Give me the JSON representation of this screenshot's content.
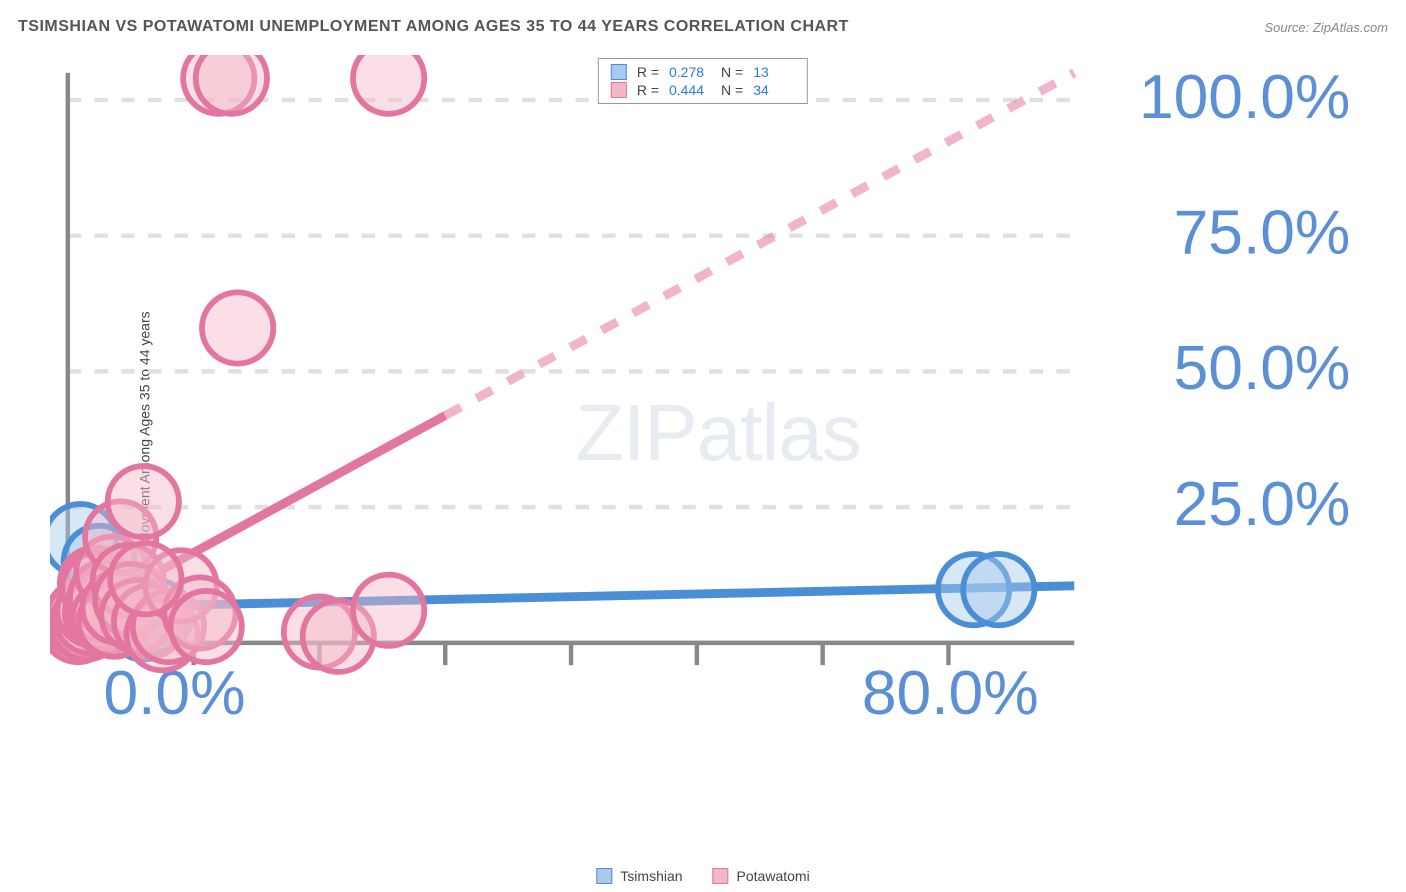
{
  "title": "TSIMSHIAN VS POTAWATOMI UNEMPLOYMENT AMONG AGES 35 TO 44 YEARS CORRELATION CHART",
  "source": "Source: ZipAtlas.com",
  "y_axis_label": "Unemployment Among Ages 35 to 44 years",
  "watermark_pre": "ZIP",
  "watermark_post": "atlas",
  "chart": {
    "type": "scatter",
    "xlim": [
      0,
      80
    ],
    "ylim": [
      0,
      105
    ],
    "x_ticks": [
      0,
      80
    ],
    "x_tick_labels": [
      "0.0%",
      "80.0%"
    ],
    "y_ticks": [
      25,
      50,
      75,
      100
    ],
    "y_tick_labels": [
      "25.0%",
      "50.0%",
      "75.0%",
      "100.0%"
    ],
    "grid_color": "#e0e0e0",
    "axis_color": "#888888",
    "background_color": "#ffffff",
    "tick_label_color": "#5b8fd6",
    "marker_radius": 8,
    "marker_stroke_width": 1.3,
    "trend_line_width": 2,
    "trend_dash": "4,4",
    "series": [
      {
        "name": "Tsimshian",
        "color_fill": "#a9c9ec",
        "color_stroke": "#4a8fd6",
        "r_value": "0.278",
        "n_value": "13",
        "trend": {
          "x1": 0,
          "y1": 6.5,
          "x2": 80,
          "y2": 10.5
        },
        "points": [
          [
            1.0,
            19.0
          ],
          [
            2.0,
            6.0
          ],
          [
            2.5,
            15.0
          ],
          [
            4.0,
            8.0
          ],
          [
            5.0,
            4.5
          ],
          [
            6.0,
            3.5
          ],
          [
            7.0,
            5.0
          ],
          [
            3.0,
            7.0
          ],
          [
            2.0,
            4.5
          ],
          [
            3.5,
            6.0
          ],
          [
            1.5,
            5.5
          ],
          [
            72.0,
            9.8
          ],
          [
            74.0,
            9.8
          ]
        ]
      },
      {
        "name": "Potawatomi",
        "color_fill": "#f3b8c8",
        "color_stroke": "#e376a0",
        "r_value": "0.444",
        "n_value": "34",
        "trend": {
          "x1": 0,
          "y1": 4.0,
          "x2": 80,
          "y2": 105.0,
          "solid_until_x": 30
        },
        "points": [
          [
            0.8,
            3.0
          ],
          [
            1.0,
            4.0
          ],
          [
            1.2,
            5.0
          ],
          [
            1.5,
            3.5
          ],
          [
            1.8,
            4.6
          ],
          [
            2.0,
            6.0
          ],
          [
            2.2,
            11.0
          ],
          [
            2.4,
            10.0
          ],
          [
            2.6,
            5.5
          ],
          [
            2.8,
            7.0
          ],
          [
            3.0,
            8.5
          ],
          [
            3.2,
            4.5
          ],
          [
            3.5,
            13.0
          ],
          [
            3.7,
            4.0
          ],
          [
            4.0,
            6.5
          ],
          [
            4.2,
            19.5
          ],
          [
            4.8,
            11.5
          ],
          [
            5.0,
            8.0
          ],
          [
            5.5,
            5.0
          ],
          [
            6.0,
            26.0
          ],
          [
            6.5,
            4.0
          ],
          [
            7.5,
            1.5
          ],
          [
            8.0,
            3.0
          ],
          [
            9.0,
            10.5
          ],
          [
            10.5,
            5.5
          ],
          [
            11.0,
            3.0
          ],
          [
            12.0,
            104.0
          ],
          [
            13.0,
            104.0
          ],
          [
            13.5,
            58.0
          ],
          [
            20.0,
            2.0
          ],
          [
            21.5,
            1.2
          ],
          [
            25.5,
            6.0
          ],
          [
            25.5,
            104.0
          ],
          [
            6.2,
            11.8
          ]
        ]
      }
    ]
  },
  "corr_legend": {
    "r_label": "R  =",
    "n_label": "N  ="
  },
  "bottom_legend_labels": [
    "Tsimshian",
    "Potawatomi"
  ]
}
